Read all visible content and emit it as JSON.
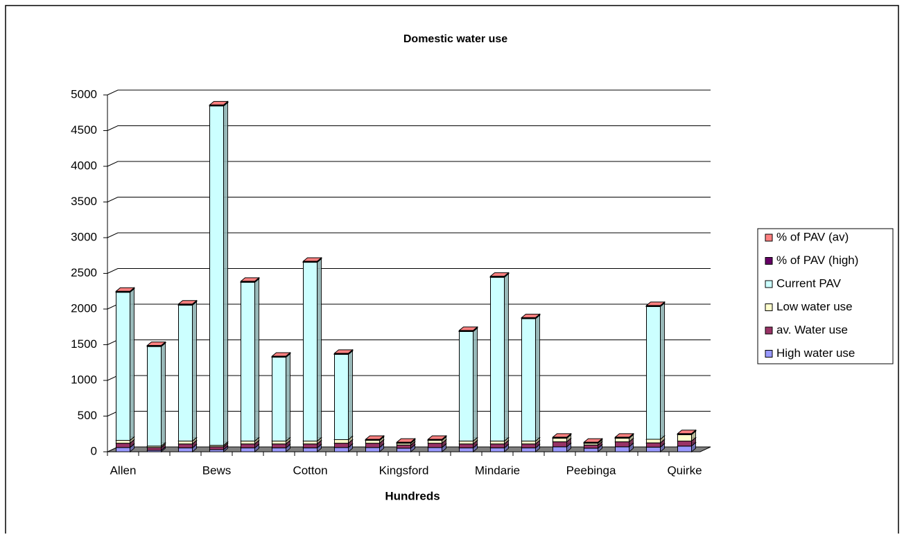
{
  "chart_data": {
    "type": "bar3d_stacked",
    "title": "Domestic water use",
    "x_label": "Hundreds",
    "categories": [
      "Allen",
      null,
      null,
      "Bews",
      null,
      null,
      "Cotton",
      null,
      null,
      "Kingsford",
      null,
      null,
      "Mindarie",
      null,
      null,
      "Peebinga",
      null,
      null,
      "Quirke"
    ],
    "series": [
      {
        "name": "High water use",
        "color": "#9999ff",
        "values": [
          60,
          20,
          55,
          30,
          55,
          55,
          55,
          60,
          60,
          50,
          60,
          55,
          55,
          55,
          70,
          50,
          70,
          65,
          80
        ]
      },
      {
        "name": "av. Water use",
        "color": "#993366",
        "values": [
          60,
          40,
          55,
          40,
          55,
          55,
          55,
          60,
          60,
          45,
          60,
          55,
          55,
          55,
          70,
          45,
          70,
          60,
          70
        ]
      },
      {
        "name": "Low water use",
        "color": "#ffffcc",
        "values": [
          40,
          20,
          40,
          20,
          40,
          40,
          40,
          50,
          40,
          25,
          40,
          40,
          40,
          40,
          50,
          25,
          50,
          50,
          90
        ]
      },
      {
        "name": "Current PAV",
        "color": "#ccffff",
        "values": [
          2075,
          1395,
          1905,
          4755,
          2225,
          1175,
          2505,
          1195,
          0,
          0,
          0,
          1535,
          2295,
          1715,
          0,
          0,
          0,
          1860,
          0
        ]
      },
      {
        "name": "% of PAV (high)",
        "color": "#660066",
        "values": [
          5,
          5,
          5,
          5,
          5,
          5,
          5,
          5,
          5,
          5,
          5,
          5,
          5,
          5,
          5,
          5,
          5,
          5,
          5
        ]
      },
      {
        "name": "% of PAV (av)",
        "color": "#ff8080",
        "values": [
          10,
          10,
          10,
          10,
          10,
          10,
          10,
          10,
          10,
          10,
          10,
          10,
          10,
          10,
          10,
          10,
          10,
          10,
          10
        ]
      }
    ],
    "ylim": [
      0,
      5000
    ],
    "yticks": [
      0,
      500,
      1000,
      1500,
      2000,
      2500,
      3000,
      3500,
      4000,
      4500,
      5000
    ],
    "grid": true,
    "legend": "right"
  }
}
